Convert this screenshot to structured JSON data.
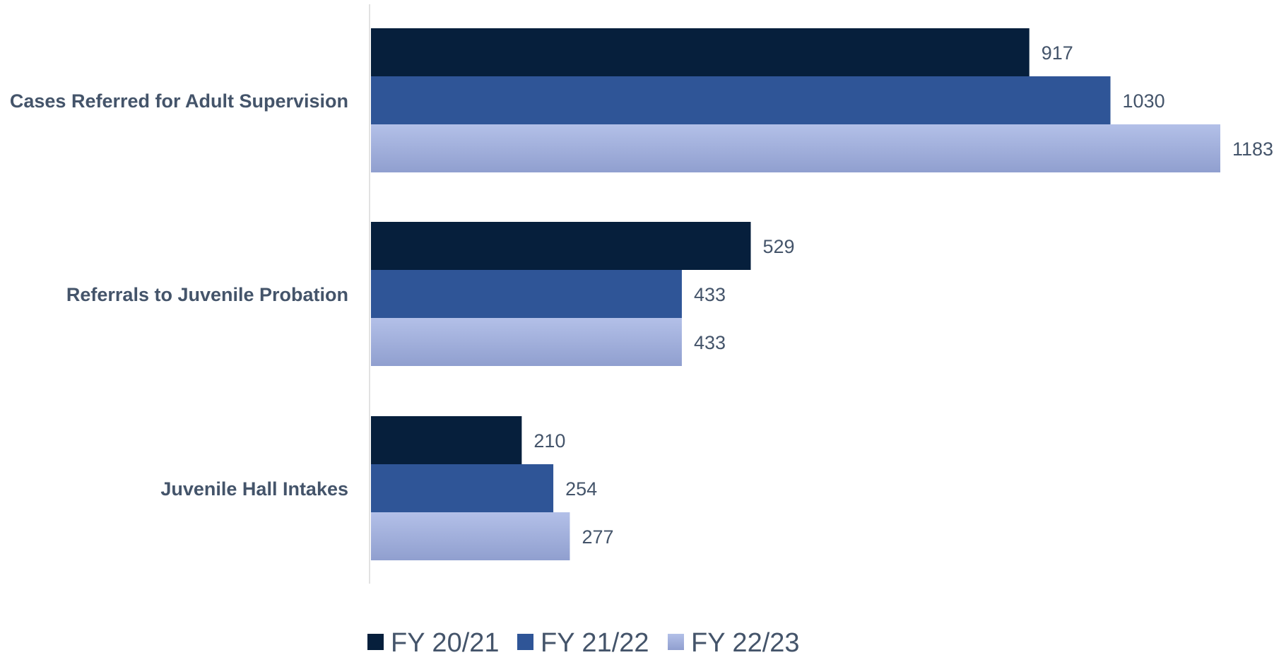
{
  "chart_data": {
    "type": "bar",
    "orientation": "horizontal",
    "categories": [
      "Cases Referred for Adult Supervision",
      "Referrals to Juvenile Probation",
      "Juvenile Hall Intakes"
    ],
    "series": [
      {
        "name": "FY 20/21",
        "values": [
          917,
          529,
          210
        ],
        "color": "#061f3c"
      },
      {
        "name": "FY 21/22",
        "values": [
          1030,
          433,
          254
        ],
        "color": "#2f5597"
      },
      {
        "name": "FY 22/23",
        "values": [
          1183,
          433,
          277
        ],
        "color": "#a3b1dd"
      }
    ],
    "title": "",
    "xlabel": "",
    "ylabel": "",
    "xlim": [
      0,
      1183
    ],
    "grid": false,
    "legend_position": "bottom",
    "data_labels": true
  }
}
